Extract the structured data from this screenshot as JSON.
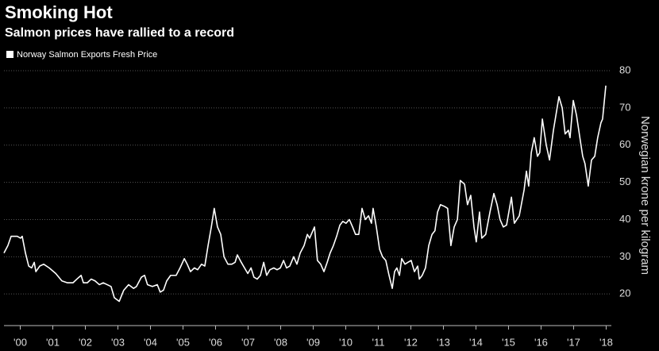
{
  "chart_data": {
    "type": "line",
    "title": "Smoking Hot",
    "subtitle": "Salmon prices have rallied to a record",
    "y_label": "Norwegian krone per kilogram",
    "legend": "top-left",
    "grid": true,
    "xlim": [
      2000,
      2018.66
    ],
    "ylim": [
      11.5,
      81.5
    ],
    "yticks": [
      20,
      30,
      40,
      50,
      60,
      70,
      80
    ],
    "xticks": [
      {
        "value": 2000.5,
        "label": "'00"
      },
      {
        "value": 2001.5,
        "label": "'01"
      },
      {
        "value": 2002.5,
        "label": "'02"
      },
      {
        "value": 2003.5,
        "label": "'03"
      },
      {
        "value": 2004.5,
        "label": "'04"
      },
      {
        "value": 2005.5,
        "label": "'05"
      },
      {
        "value": 2006.5,
        "label": "'06"
      },
      {
        "value": 2007.5,
        "label": "'07"
      },
      {
        "value": 2008.5,
        "label": "'08"
      },
      {
        "value": 2009.5,
        "label": "'09"
      },
      {
        "value": 2010.5,
        "label": "'10"
      },
      {
        "value": 2011.5,
        "label": "'11"
      },
      {
        "value": 2012.5,
        "label": "'12"
      },
      {
        "value": 2013.5,
        "label": "'13"
      },
      {
        "value": 2014.5,
        "label": "'14"
      },
      {
        "value": 2015.5,
        "label": "'15"
      },
      {
        "value": 2016.5,
        "label": "'16"
      },
      {
        "value": 2017.5,
        "label": "'17"
      },
      {
        "value": 2018.5,
        "label": "'18"
      }
    ],
    "x": [
      2000,
      2000.12,
      2000.22,
      2000.41,
      2000.51,
      2000.56,
      2000.66,
      2000.76,
      2000.85,
      2000.93,
      2000.98,
      2001.1,
      2001.22,
      2001.39,
      2001.59,
      2001.78,
      2001.95,
      2002.12,
      2002.24,
      2002.37,
      2002.44,
      2002.56,
      2002.68,
      2002.8,
      2002.93,
      2003.05,
      2003.17,
      2003.29,
      2003.39,
      2003.54,
      2003.68,
      2003.83,
      2003.98,
      2004.07,
      2004.22,
      2004.32,
      2004.41,
      2004.56,
      2004.71,
      2004.8,
      2004.9,
      2005,
      2005.12,
      2005.29,
      2005.41,
      2005.54,
      2005.63,
      2005.73,
      2005.85,
      2005.95,
      2006.07,
      2006.17,
      2006.27,
      2006.37,
      2006.46,
      2006.56,
      2006.66,
      2006.76,
      2006.88,
      2007,
      2007.1,
      2007.17,
      2007.29,
      2007.39,
      2007.49,
      2007.59,
      2007.68,
      2007.78,
      2007.88,
      2007.98,
      2008.07,
      2008.17,
      2008.29,
      2008.39,
      2008.49,
      2008.59,
      2008.68,
      2008.78,
      2008.9,
      2009,
      2009.1,
      2009.22,
      2009.32,
      2009.39,
      2009.54,
      2009.63,
      2009.73,
      2009.83,
      2009.93,
      2010.02,
      2010.12,
      2010.22,
      2010.32,
      2010.41,
      2010.51,
      2010.61,
      2010.71,
      2010.8,
      2010.9,
      2011,
      2011.1,
      2011.2,
      2011.29,
      2011.34,
      2011.44,
      2011.54,
      2011.63,
      2011.73,
      2011.83,
      2011.93,
      2012,
      2012.07,
      2012.15,
      2012.22,
      2012.32,
      2012.41,
      2012.51,
      2012.61,
      2012.71,
      2012.76,
      2012.85,
      2012.95,
      2013.05,
      2013.15,
      2013.24,
      2013.32,
      2013.41,
      2013.54,
      2013.63,
      2013.73,
      2013.83,
      2013.93,
      2014.02,
      2014.15,
      2014.24,
      2014.34,
      2014.44,
      2014.51,
      2014.61,
      2014.68,
      2014.8,
      2014.93,
      2015.05,
      2015.15,
      2015.24,
      2015.34,
      2015.44,
      2015.59,
      2015.68,
      2015.83,
      2015.98,
      2016.05,
      2016.12,
      2016.2,
      2016.29,
      2016.39,
      2016.46,
      2016.54,
      2016.66,
      2016.76,
      2016.88,
      2017.05,
      2017.15,
      2017.24,
      2017.34,
      2017.39,
      2017.49,
      2017.59,
      2017.71,
      2017.78,
      2017.85,
      2017.95,
      2018.05,
      2018.15,
      2018.24,
      2018.34,
      2018.39,
      2018.49
    ],
    "series": [
      {
        "name": "Norway Salmon Exports Fresh Price",
        "color": "#ffffff",
        "values": [
          31,
          33,
          35.5,
          35.5,
          35,
          35.5,
          31,
          27.5,
          27,
          28.5,
          26,
          27.5,
          28,
          27,
          25.5,
          23.5,
          23,
          23,
          24,
          25,
          23,
          23,
          24,
          23.5,
          22.5,
          23,
          22.5,
          22,
          19,
          18,
          21,
          22.5,
          21.5,
          22,
          24.5,
          25,
          22.5,
          22,
          22.5,
          20.5,
          21,
          23.5,
          25,
          25,
          27,
          29.5,
          28,
          26,
          27,
          26.5,
          28,
          27.5,
          33,
          38,
          43,
          38,
          36,
          30,
          28,
          28,
          28.5,
          30.5,
          28.5,
          27,
          25.5,
          27,
          24.5,
          24,
          25,
          28.5,
          25,
          26.5,
          27,
          26.5,
          27,
          29,
          27,
          27.5,
          30,
          28,
          31,
          33,
          36,
          35,
          38,
          29,
          28,
          26,
          28.5,
          31,
          33,
          35.5,
          38.5,
          39.5,
          39,
          40,
          38,
          36,
          36,
          43,
          40,
          41,
          39,
          43,
          38,
          32,
          30,
          29,
          25,
          21.5,
          26,
          27,
          25,
          29.5,
          28,
          28.5,
          29,
          26,
          27.5,
          24,
          25,
          27,
          33,
          36,
          37,
          42,
          44,
          43.5,
          43,
          33,
          38,
          40,
          50.5,
          49.5,
          44,
          46.5,
          38,
          34,
          42,
          35,
          36,
          42,
          47,
          44,
          40,
          38,
          38.5,
          46,
          39,
          41,
          48,
          53,
          49,
          58,
          62,
          57,
          58,
          67,
          60,
          56,
          64,
          73,
          70,
          63,
          64,
          62,
          72,
          68,
          61,
          57,
          55,
          49,
          56,
          57,
          62,
          66,
          67,
          76
        ]
      }
    ]
  }
}
